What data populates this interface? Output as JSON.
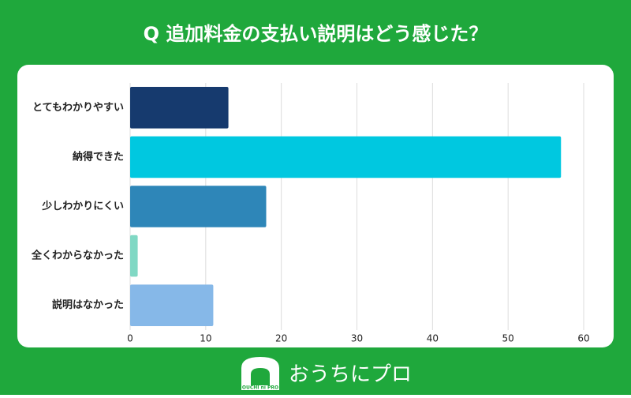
{
  "chart_data": {
    "type": "bar",
    "orientation": "horizontal",
    "title": "Q 追加料金の支払い説明はどう感じた？",
    "categories": [
      "とてもわかりやすい",
      "納得できた",
      "少しわかりにくい",
      "全くわからなかった",
      "説明はなかった"
    ],
    "values": [
      13,
      57,
      18,
      1,
      11
    ],
    "colors": [
      "#163a6e",
      "#00c8e0",
      "#2e86b8",
      "#80d8c4",
      "#86b8e8"
    ],
    "xlim": [
      0,
      60
    ],
    "xticks": [
      0,
      10,
      20,
      30,
      40,
      50,
      60
    ],
    "grid": true
  },
  "brand": {
    "name": "おうちにプロ",
    "logo_text": "OUCHI ni PRO"
  }
}
